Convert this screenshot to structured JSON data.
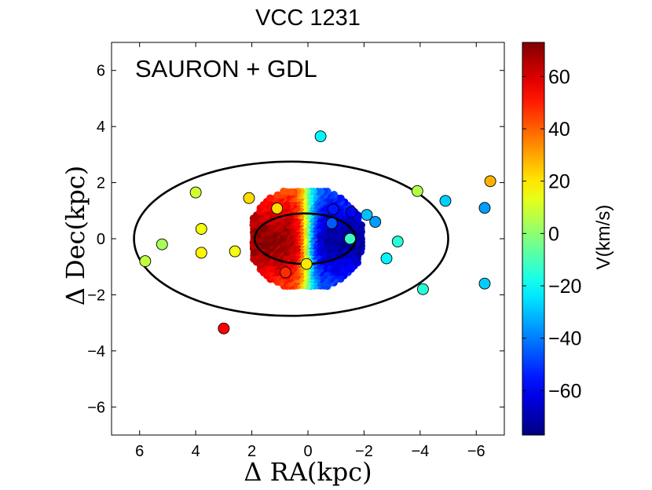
{
  "chart_data": {
    "type": "scatter",
    "title": "VCC 1231",
    "annotation": "SAURON + GDL",
    "xlabel": "Δ RA(kpc)",
    "ylabel": "Δ Dec(kpc)",
    "xlim": [
      7,
      -7
    ],
    "ylim": [
      -7,
      7
    ],
    "x_axis_reversed": true,
    "xticks": [
      6,
      4,
      2,
      0,
      -2,
      -4,
      -6
    ],
    "yticks": [
      6,
      4,
      2,
      0,
      -2,
      -4,
      -6
    ],
    "xtick_labels": [
      "6",
      "4",
      "2",
      "0",
      "−2",
      "−4",
      "−6"
    ],
    "ytick_labels": [
      "6",
      "4",
      "2",
      "0",
      "−2",
      "−4",
      "−6"
    ],
    "grid": false,
    "colorbar": {
      "label": "V(km/s)",
      "range": [
        -77,
        73
      ],
      "ticks": [
        60,
        40,
        20,
        0,
        -20,
        -40,
        -60
      ],
      "tick_labels": [
        "60",
        "40",
        "20",
        "0",
        "−20",
        "−40",
        "−60"
      ],
      "colormap": "jet"
    },
    "ellipses": [
      {
        "center": [
          0.6,
          0.0
        ],
        "semi_major_x": 5.6,
        "semi_minor_y": 2.75
      },
      {
        "center": [
          0.1,
          0.0
        ],
        "semi_major_x": 1.8,
        "semi_minor_y": 0.9
      }
    ],
    "sauron_field": {
      "x_range": [
        2.0,
        -1.9
      ],
      "y_range": [
        -1.8,
        1.7
      ],
      "velocity_gradient": "positive (red) at +RA, negative (blue) at −RA",
      "max_velocity": 70,
      "min_velocity": -72
    },
    "gc_points": [
      {
        "x": 5.8,
        "y": -0.8,
        "v": 8
      },
      {
        "x": 5.2,
        "y": -0.2,
        "v": 4
      },
      {
        "x": 4.0,
        "y": 1.65,
        "v": 10
      },
      {
        "x": 3.8,
        "y": 0.35,
        "v": 15
      },
      {
        "x": 3.8,
        "y": -0.5,
        "v": 18
      },
      {
        "x": 2.6,
        "y": -0.45,
        "v": 15
      },
      {
        "x": 2.1,
        "y": 1.45,
        "v": 22
      },
      {
        "x": 1.1,
        "y": 1.08,
        "v": 22
      },
      {
        "x": 0.8,
        "y": -1.2,
        "v": 48
      },
      {
        "x": 0.05,
        "y": -0.9,
        "v": 20
      },
      {
        "x": -0.45,
        "y": 3.65,
        "v": -22
      },
      {
        "x": -0.85,
        "y": 0.55,
        "v": -45
      },
      {
        "x": -0.9,
        "y": 1.05,
        "v": -55
      },
      {
        "x": -1.55,
        "y": 0.95,
        "v": -58
      },
      {
        "x": -1.5,
        "y": 0.0,
        "v": -12
      },
      {
        "x": -2.1,
        "y": 0.85,
        "v": -30
      },
      {
        "x": -2.4,
        "y": 0.6,
        "v": -35
      },
      {
        "x": -2.8,
        "y": -0.7,
        "v": -22
      },
      {
        "x": -3.2,
        "y": -0.1,
        "v": -15
      },
      {
        "x": -3.9,
        "y": 1.7,
        "v": 6
      },
      {
        "x": -4.1,
        "y": -1.8,
        "v": -15
      },
      {
        "x": -4.9,
        "y": 1.35,
        "v": -28
      },
      {
        "x": -6.3,
        "y": 1.1,
        "v": -35
      },
      {
        "x": -6.3,
        "y": -1.6,
        "v": -28
      },
      {
        "x": -6.5,
        "y": 2.05,
        "v": 28
      },
      {
        "x": 3.0,
        "y": -3.2,
        "v": 55
      }
    ]
  }
}
